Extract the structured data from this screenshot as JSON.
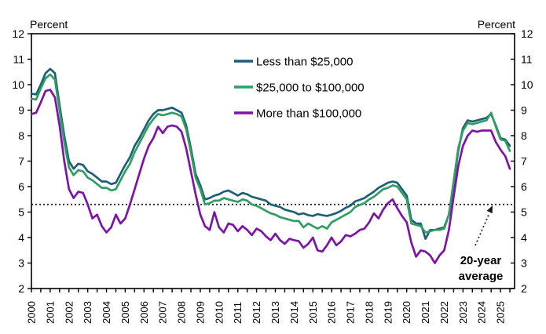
{
  "chart_data": {
    "type": "line",
    "title_left": "Percent",
    "title_right": "Percent",
    "xlabel": "",
    "ylabel": "Percent",
    "xlim": [
      2000,
      2025.75
    ],
    "ylim": [
      2,
      12
    ],
    "y_ticks": [
      2,
      3,
      4,
      5,
      6,
      7,
      8,
      9,
      10,
      11,
      12
    ],
    "x_years": [
      2000,
      2001,
      2002,
      2003,
      2004,
      2005,
      2006,
      2007,
      2008,
      2009,
      2010,
      2011,
      2012,
      2013,
      2014,
      2015,
      2016,
      2017,
      2018,
      2019,
      2020,
      2021,
      2022,
      2023,
      2024,
      2025
    ],
    "x_start": 2000.0,
    "x_step": 0.25,
    "grid": "off",
    "legend_position": "upper-center-inside",
    "average_line": {
      "value": 5.3,
      "style": "dotted",
      "color": "#1a1a1a"
    },
    "annotation": {
      "line1": "20-year",
      "line2": "average"
    },
    "series": [
      {
        "name": "Less than $25,000",
        "color": "#1d5f78",
        "values": [
          9.65,
          9.62,
          10.0,
          10.45,
          10.62,
          10.45,
          9.2,
          8.0,
          7.0,
          6.7,
          6.9,
          6.85,
          6.6,
          6.5,
          6.35,
          6.2,
          6.2,
          6.1,
          6.15,
          6.5,
          6.85,
          7.15,
          7.6,
          7.9,
          8.25,
          8.6,
          8.85,
          9.0,
          9.0,
          9.05,
          9.1,
          9.0,
          8.9,
          8.4,
          7.5,
          6.5,
          6.05,
          5.5,
          5.55,
          5.65,
          5.7,
          5.8,
          5.85,
          5.75,
          5.65,
          5.75,
          5.7,
          5.6,
          5.55,
          5.5,
          5.45,
          5.3,
          5.25,
          5.2,
          5.1,
          5.05,
          5.0,
          4.91,
          4.95,
          4.88,
          4.85,
          4.92,
          4.88,
          4.85,
          4.9,
          4.96,
          5.05,
          5.17,
          5.25,
          5.42,
          5.48,
          5.55,
          5.68,
          5.8,
          5.95,
          6.05,
          6.15,
          6.2,
          6.15,
          5.9,
          5.65,
          4.7,
          4.55,
          4.55,
          3.95,
          4.3,
          4.3,
          4.35,
          4.4,
          4.9,
          6.1,
          7.4,
          8.3,
          8.6,
          8.55,
          8.6,
          8.65,
          8.7,
          8.85,
          8.4,
          7.9,
          7.85,
          7.6
        ]
      },
      {
        "name": "$25,000 to $100,000",
        "color": "#2f9e62",
        "values": [
          9.45,
          9.42,
          9.85,
          10.25,
          10.4,
          10.2,
          9.0,
          7.75,
          6.75,
          6.45,
          6.65,
          6.6,
          6.35,
          6.25,
          6.1,
          5.95,
          5.95,
          5.85,
          5.9,
          6.25,
          6.6,
          6.9,
          7.35,
          7.7,
          8.05,
          8.4,
          8.65,
          8.85,
          8.8,
          8.85,
          8.9,
          8.85,
          8.75,
          8.25,
          7.35,
          6.35,
          5.9,
          5.3,
          5.35,
          5.45,
          5.45,
          5.55,
          5.5,
          5.45,
          5.4,
          5.5,
          5.45,
          5.3,
          5.25,
          5.15,
          5.05,
          4.95,
          4.9,
          4.8,
          4.75,
          4.7,
          4.65,
          4.65,
          4.4,
          4.55,
          4.45,
          4.35,
          4.45,
          4.35,
          4.6,
          4.7,
          4.8,
          4.9,
          5.0,
          5.2,
          5.28,
          5.35,
          5.5,
          5.6,
          5.75,
          5.9,
          5.95,
          6.05,
          6.0,
          5.75,
          5.5,
          4.55,
          4.5,
          4.45,
          4.2,
          4.25,
          4.3,
          4.3,
          4.35,
          4.9,
          6.2,
          7.5,
          8.2,
          8.5,
          8.45,
          8.5,
          8.55,
          8.6,
          8.9,
          8.35,
          7.85,
          7.8,
          7.4
        ]
      },
      {
        "name": "More than $100,000",
        "color": "#7d13ab",
        "values": [
          8.85,
          8.9,
          9.3,
          9.75,
          9.8,
          9.5,
          8.4,
          7.0,
          5.9,
          5.55,
          5.8,
          5.75,
          5.3,
          4.75,
          4.9,
          4.45,
          4.2,
          4.4,
          4.9,
          4.55,
          4.75,
          5.3,
          5.9,
          6.5,
          7.1,
          7.6,
          7.9,
          8.35,
          8.1,
          8.35,
          8.4,
          8.35,
          8.15,
          7.5,
          6.6,
          5.7,
          4.9,
          4.45,
          4.3,
          5.0,
          4.4,
          4.2,
          4.55,
          4.5,
          4.25,
          4.45,
          4.3,
          4.1,
          4.35,
          4.25,
          4.05,
          3.9,
          4.15,
          3.9,
          3.75,
          3.95,
          3.9,
          3.86,
          3.6,
          3.75,
          4.0,
          3.5,
          3.45,
          3.7,
          4.0,
          3.7,
          3.85,
          4.1,
          4.05,
          4.15,
          4.3,
          4.35,
          4.6,
          4.95,
          4.75,
          5.1,
          5.35,
          5.5,
          5.15,
          4.85,
          4.6,
          3.8,
          3.25,
          3.5,
          3.45,
          3.3,
          3.0,
          3.3,
          3.5,
          4.3,
          5.6,
          6.8,
          7.6,
          8.0,
          8.2,
          8.15,
          8.2,
          8.2,
          8.2,
          7.75,
          7.45,
          7.2,
          6.7
        ]
      }
    ]
  }
}
